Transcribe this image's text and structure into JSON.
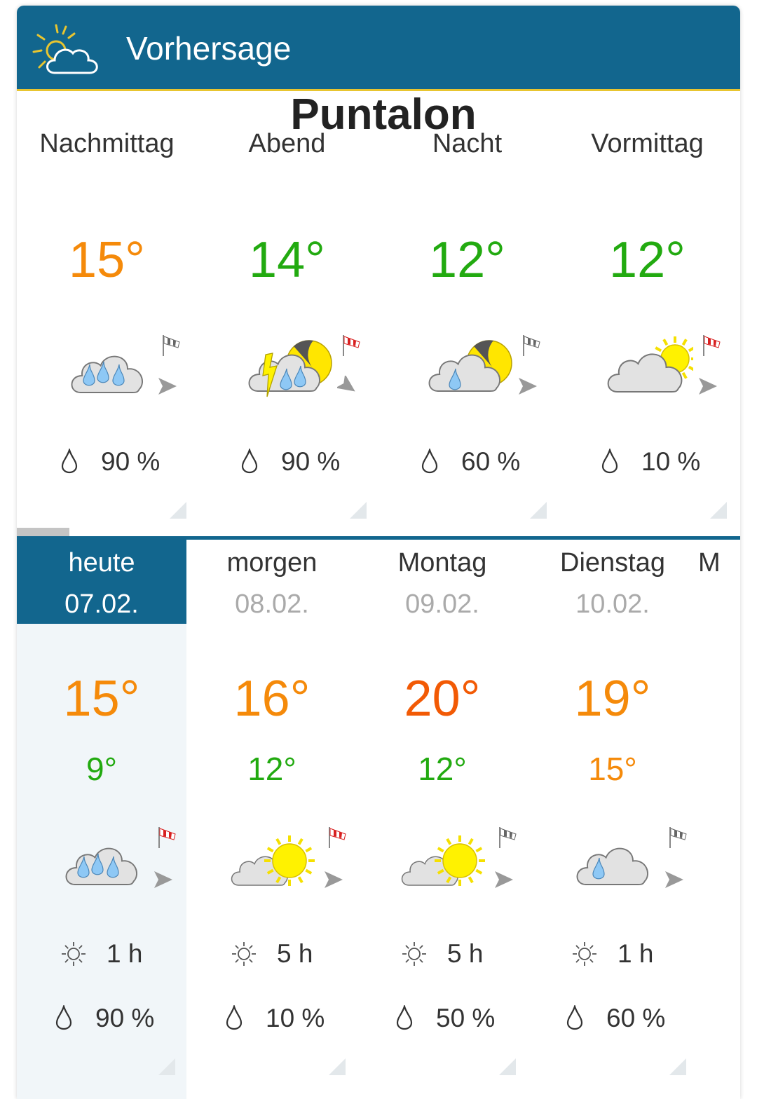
{
  "header": {
    "title": "Vorhersage",
    "icon": "sun-cloud-icon"
  },
  "location": "Puntalon",
  "colors": {
    "header": "#12668e",
    "accent_line": "#e8c530",
    "warm": "#f58a0a",
    "hot": "#f25a05",
    "mild": "#22aa10"
  },
  "periods": [
    {
      "label": "Nachmittag",
      "temp": "15°",
      "temp_color": "#f58a0a",
      "icon": "rain-heavy",
      "sock": "gray",
      "wind_dir": "right",
      "rain": "90 %"
    },
    {
      "label": "Abend",
      "temp": "14°",
      "temp_color": "#22aa10",
      "icon": "thunder-rain-moon",
      "sock": "red",
      "wind_dir": "down-right",
      "rain": "90 %"
    },
    {
      "label": "Nacht",
      "temp": "12°",
      "temp_color": "#22aa10",
      "icon": "rain-moon",
      "sock": "gray",
      "wind_dir": "right",
      "rain": "60 %"
    },
    {
      "label": "Vormittag",
      "temp": "12°",
      "temp_color": "#22aa10",
      "icon": "cloud-sun",
      "sock": "red",
      "wind_dir": "right",
      "rain": "10 %"
    }
  ],
  "days": [
    {
      "name": "heute",
      "date": "07.02.",
      "selected": true,
      "hi": "15°",
      "hi_color": "#f58a0a",
      "lo": "9°",
      "lo_color": "#22aa10",
      "icon": "rain-heavy",
      "sock": "red",
      "wind_dir": "right",
      "sun": "1 h",
      "rain": "90 %"
    },
    {
      "name": "morgen",
      "date": "08.02.",
      "hi": "16°",
      "hi_color": "#f58a0a",
      "lo": "12°",
      "lo_color": "#22aa10",
      "icon": "sun-cloud",
      "sock": "red",
      "wind_dir": "right",
      "sun": "5 h",
      "rain": "10 %"
    },
    {
      "name": "Montag",
      "date": "09.02.",
      "hi": "20°",
      "hi_color": "#f25a05",
      "lo": "12°",
      "lo_color": "#22aa10",
      "icon": "sun-cloud",
      "sock": "gray",
      "wind_dir": "right",
      "sun": "5 h",
      "rain": "50 %"
    },
    {
      "name": "Dienstag",
      "date": "10.02.",
      "hi": "19°",
      "hi_color": "#f58a0a",
      "lo": "15°",
      "lo_color": "#f58a0a",
      "icon": "rain-light",
      "sock": "gray",
      "wind_dir": "right",
      "sun": "1 h",
      "rain": "60 %"
    },
    {
      "name": "M",
      "date": "",
      "partial": true
    }
  ]
}
